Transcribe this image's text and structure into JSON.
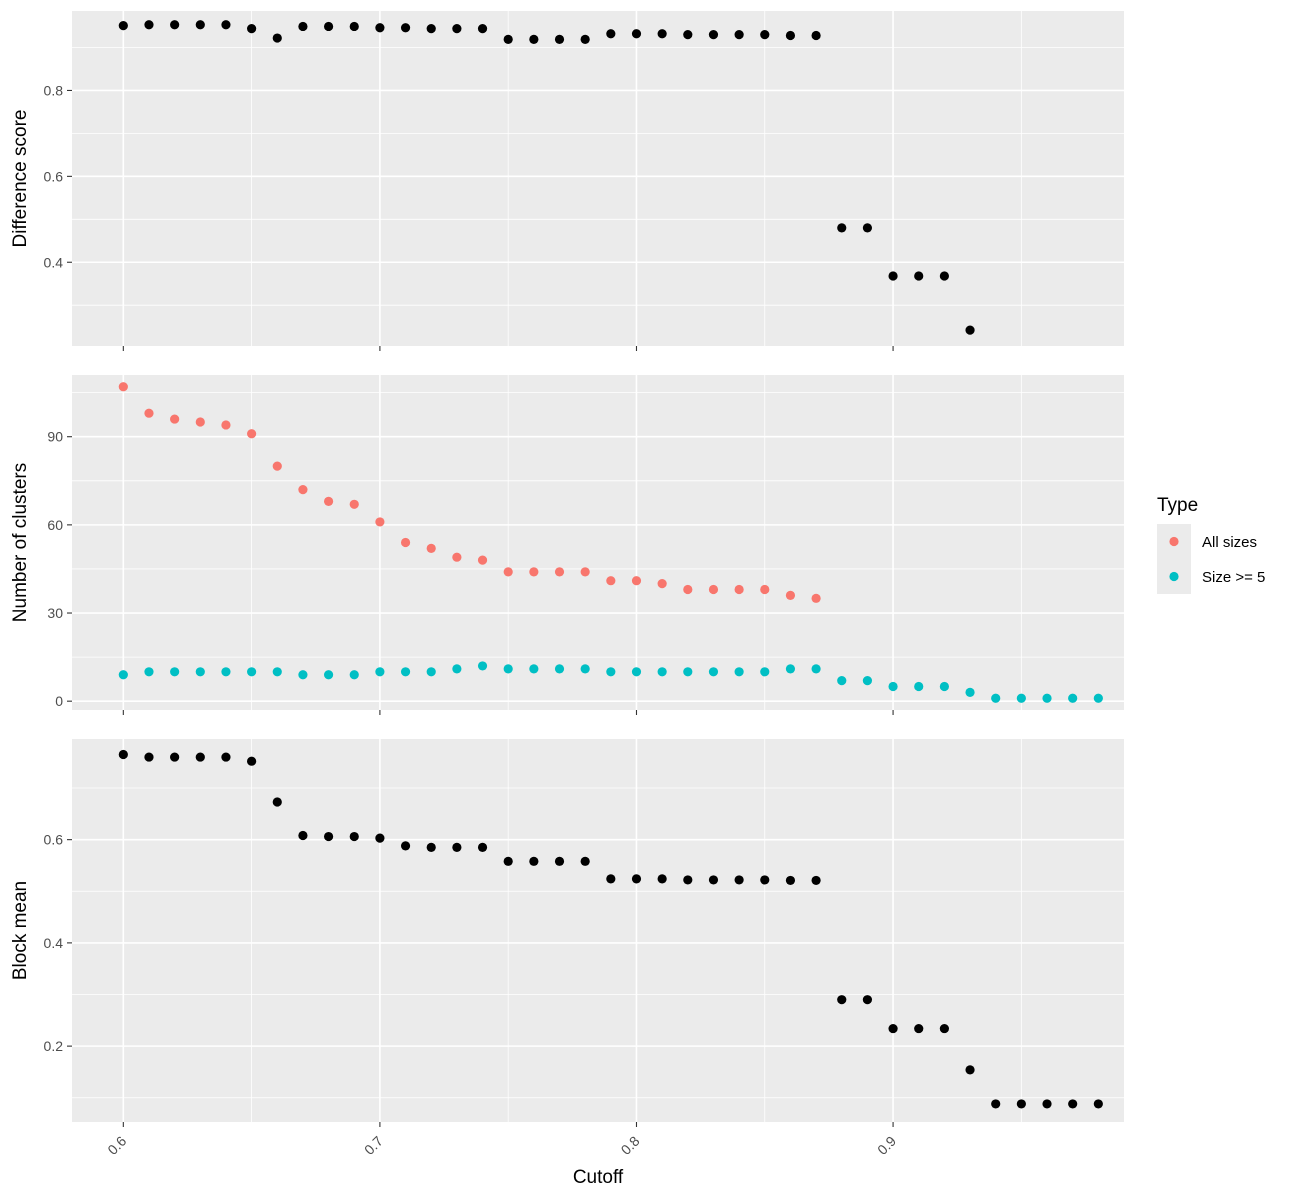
{
  "chart_data": {
    "type": "scatter",
    "xlabel": "Cutoff",
    "x_range": [
      0.58,
      0.99
    ],
    "x_ticks": [
      0.6,
      0.7,
      0.8,
      0.9
    ],
    "x_tick_labels": [
      "0.6",
      "0.7",
      "0.8",
      "0.9"
    ],
    "x_tick_label_rotation": "45deg",
    "grid": true,
    "legend": {
      "title": "Type",
      "placement": "right",
      "entries": [
        {
          "label": "All sizes",
          "color": "#F8766D"
        },
        {
          "label": "Size >= 5",
          "color": "#00BFC4"
        }
      ]
    },
    "panels": [
      {
        "ylabel": "Difference score",
        "ylim": [
          0.205,
          0.985
        ],
        "y_ticks": [
          0.4,
          0.6,
          0.8
        ],
        "y_tick_labels": [
          "0.4",
          "0.6",
          "0.8"
        ],
        "series": [
          {
            "color": "#000000",
            "x": [
              0.6,
              0.61,
              0.62,
              0.63,
              0.64,
              0.65,
              0.66,
              0.67,
              0.68,
              0.69,
              0.7,
              0.71,
              0.72,
              0.73,
              0.74,
              0.75,
              0.76,
              0.77,
              0.78,
              0.79,
              0.8,
              0.81,
              0.82,
              0.83,
              0.84,
              0.85,
              0.86,
              0.87,
              0.88,
              0.89,
              0.9,
              0.91,
              0.92,
              0.93
            ],
            "y": [
              0.951,
              0.953,
              0.953,
              0.953,
              0.953,
              0.944,
              0.922,
              0.949,
              0.949,
              0.949,
              0.946,
              0.946,
              0.944,
              0.944,
              0.944,
              0.919,
              0.919,
              0.919,
              0.919,
              0.932,
              0.932,
              0.932,
              0.93,
              0.93,
              0.93,
              0.93,
              0.928,
              0.928,
              0.48,
              0.48,
              0.368,
              0.368,
              0.368,
              0.242
            ]
          }
        ]
      },
      {
        "ylabel": "Number of clusters",
        "ylim": [
          -3,
          111
        ],
        "y_ticks": [
          0,
          30,
          60,
          90
        ],
        "y_tick_labels": [
          "0",
          "30",
          "60",
          "90"
        ],
        "series": [
          {
            "name": "All sizes",
            "color": "#F8766D",
            "x": [
              0.6,
              0.61,
              0.62,
              0.63,
              0.64,
              0.65,
              0.66,
              0.67,
              0.68,
              0.69,
              0.7,
              0.71,
              0.72,
              0.73,
              0.74,
              0.75,
              0.76,
              0.77,
              0.78,
              0.79,
              0.8,
              0.81,
              0.82,
              0.83,
              0.84,
              0.85,
              0.86,
              0.87
            ],
            "y": [
              107,
              98,
              96,
              95,
              94,
              91,
              80,
              72,
              68,
              67,
              61,
              54,
              52,
              49,
              48,
              44,
              44,
              44,
              44,
              41,
              41,
              40,
              38,
              38,
              38,
              38,
              36,
              35
            ]
          },
          {
            "name": "Size >= 5",
            "color": "#00BFC4",
            "x": [
              0.6,
              0.61,
              0.62,
              0.63,
              0.64,
              0.65,
              0.66,
              0.67,
              0.68,
              0.69,
              0.7,
              0.71,
              0.72,
              0.73,
              0.74,
              0.75,
              0.76,
              0.77,
              0.78,
              0.79,
              0.8,
              0.81,
              0.82,
              0.83,
              0.84,
              0.85,
              0.86,
              0.87,
              0.88,
              0.89,
              0.9,
              0.91,
              0.92,
              0.93,
              0.94,
              0.95,
              0.96,
              0.97,
              0.98
            ],
            "y": [
              9,
              10,
              10,
              10,
              10,
              10,
              10,
              9,
              9,
              9,
              10,
              10,
              10,
              11,
              12,
              11,
              11,
              11,
              11,
              10,
              10,
              10,
              10,
              10,
              10,
              10,
              11,
              11,
              7,
              7,
              5,
              5,
              5,
              3,
              1,
              1,
              1,
              1,
              1
            ]
          }
        ]
      },
      {
        "ylabel": "Block mean",
        "ylim": [
          0.053,
          0.795
        ],
        "y_ticks": [
          0.2,
          0.4,
          0.6
        ],
        "y_tick_labels": [
          "0.2",
          "0.4",
          "0.6"
        ],
        "series": [
          {
            "color": "#000000",
            "x": [
              0.6,
              0.61,
              0.62,
              0.63,
              0.64,
              0.65,
              0.66,
              0.67,
              0.68,
              0.69,
              0.7,
              0.71,
              0.72,
              0.73,
              0.74,
              0.75,
              0.76,
              0.77,
              0.78,
              0.79,
              0.8,
              0.81,
              0.82,
              0.83,
              0.84,
              0.85,
              0.86,
              0.87,
              0.88,
              0.89,
              0.9,
              0.91,
              0.92,
              0.93,
              0.94,
              0.95,
              0.96,
              0.97,
              0.98
            ],
            "y": [
              0.765,
              0.76,
              0.76,
              0.76,
              0.76,
              0.752,
              0.673,
              0.608,
              0.606,
              0.606,
              0.603,
              0.588,
              0.585,
              0.585,
              0.585,
              0.558,
              0.558,
              0.558,
              0.558,
              0.524,
              0.524,
              0.524,
              0.522,
              0.522,
              0.522,
              0.522,
              0.521,
              0.521,
              0.29,
              0.29,
              0.234,
              0.234,
              0.234,
              0.154,
              0.088,
              0.088,
              0.088,
              0.088,
              0.088
            ]
          }
        ]
      }
    ]
  }
}
